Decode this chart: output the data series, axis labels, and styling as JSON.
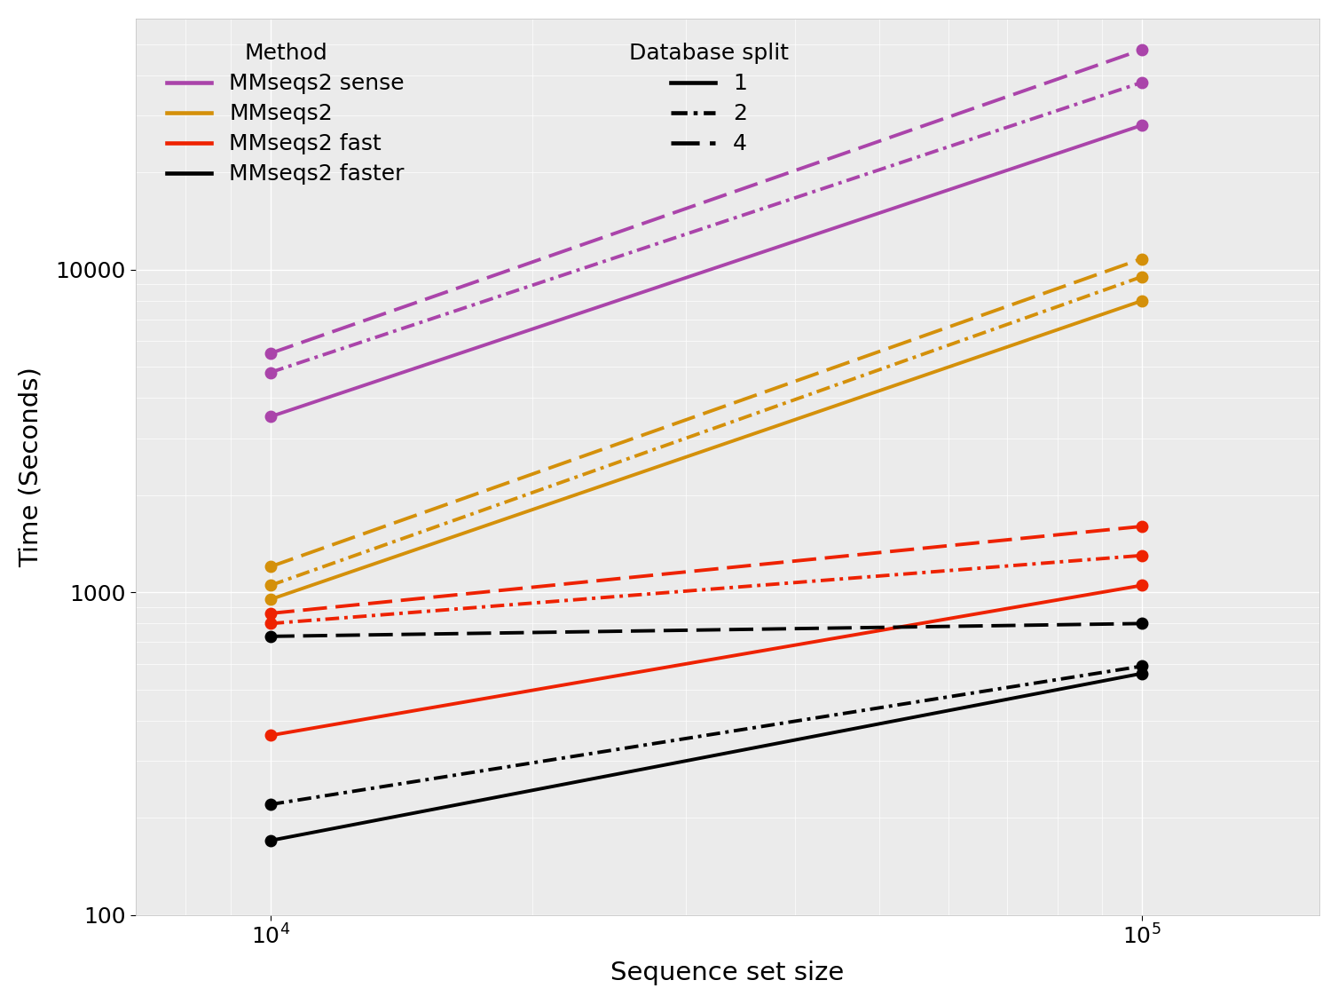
{
  "title": "",
  "xlabel": "Sequence set size",
  "ylabel": "Time (Seconds)",
  "xlim": [
    7000,
    160000
  ],
  "ylim": [
    100,
    60000
  ],
  "x_ticks": [
    10000,
    100000
  ],
  "x_values": [
    10000,
    100000
  ],
  "methods": [
    {
      "name": "MMseqs2 sense",
      "color": "#AA44AA",
      "splits": {
        "1": [
          3500,
          28000
        ],
        "2": [
          4800,
          38000
        ],
        "4": [
          5500,
          48000
        ]
      }
    },
    {
      "name": "MMseqs2",
      "color": "#D4900A",
      "splits": {
        "1": [
          950,
          8000
        ],
        "2": [
          1050,
          9500
        ],
        "4": [
          1200,
          10800
        ]
      }
    },
    {
      "name": "MMseqs2 fast",
      "color": "#EE2200",
      "splits": {
        "1": [
          360,
          1050
        ],
        "2": [
          800,
          1300
        ],
        "4": [
          860,
          1600
        ]
      }
    },
    {
      "name": "MMseqs2 faster",
      "color": "#000000",
      "splits": {
        "1": [
          170,
          560
        ],
        "2": [
          220,
          590
        ],
        "4": [
          730,
          800
        ]
      }
    }
  ],
  "split_linestyles": {
    "1": "solid",
    "2": "dashdot",
    "4": "dashed"
  },
  "legend_method_title": "Method",
  "legend_split_title": "Database split",
  "line_width": 2.8,
  "marker": "o",
  "marker_size": 9,
  "bg_color": "#EBEBEB",
  "grid_color": "#FFFFFF",
  "panel_border_color": "#FFFFFF",
  "label_fontsize": 21,
  "tick_fontsize": 18,
  "legend_fontsize": 18,
  "legend_title_fontsize": 18
}
